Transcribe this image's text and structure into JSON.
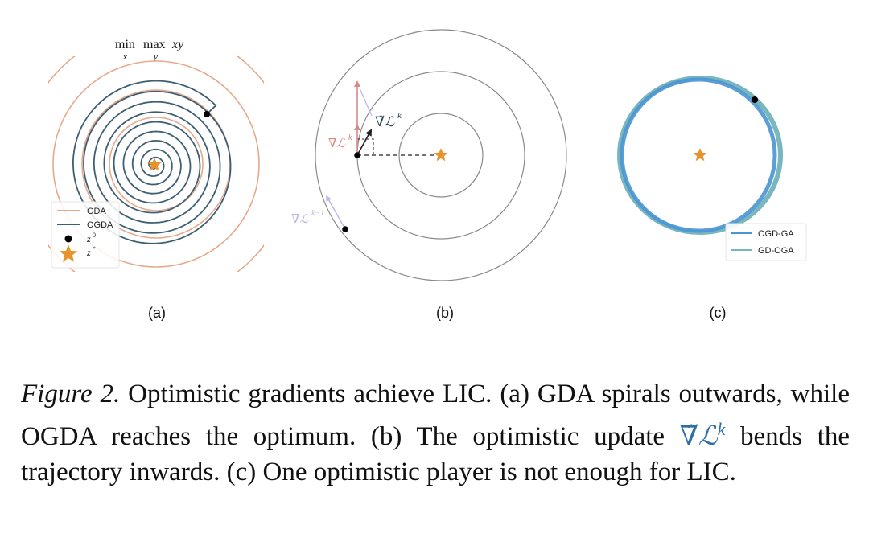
{
  "colors": {
    "gda": "#e8a88a",
    "ogda": "#3e5f73",
    "star": "#e8922e",
    "circle": "#8a8a8a",
    "grad_red": "#d98a86",
    "grad_lavender": "#c2b6e8",
    "ogd_ga": "#4a95d3",
    "gd_oga": "#79b6bd"
  },
  "panel_a": {
    "title_parts": [
      "min",
      "max",
      "x",
      "y",
      "xy"
    ],
    "legend": [
      {
        "label": "GDA",
        "kind": "line"
      },
      {
        "label": "OGDA",
        "kind": "line"
      },
      {
        "label": "z",
        "sup": "0",
        "kind": "dot"
      },
      {
        "label": "z",
        "sup": "*",
        "kind": "star"
      }
    ],
    "label": "(a)"
  },
  "panel_b": {
    "grad_label": "∇ℒ",
    "grad_sup": "k",
    "opt_label": "∇̃ℒ",
    "opt_sup": "k",
    "prev_label": "∇ℒ",
    "prev_sup": "k−1",
    "label": "(b)"
  },
  "panel_c": {
    "legend": [
      {
        "label": "OGD-GA"
      },
      {
        "label": "GD-OGA"
      }
    ],
    "label": "(c)"
  },
  "caption": {
    "fig": "Figure 2.",
    "text1": " Optimistic gradients achieve LIC. (a) GDA spirals outwards, while OGDA reaches the optimum.  (b) The optimistic update ",
    "math": "∇̃ℒ",
    "math_sup": "k",
    "text2": " bends the trajectory inwards.  (c) One optimistic player is not enough for LIC."
  }
}
